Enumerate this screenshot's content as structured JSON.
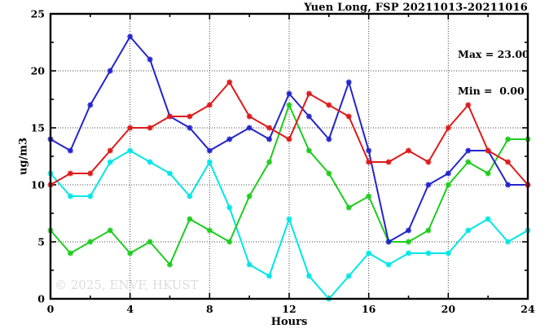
{
  "chart": {
    "title": "Yuen Long, FSP 20211013-20211016",
    "annotation": {
      "max_label": "Max = 23.00",
      "min_label": "Min =  0.00"
    },
    "watermark": "© 2025, ENVF, HKUST",
    "xlabel": "Hours",
    "ylabel": "ug/m3"
  },
  "chart_data": {
    "type": "line",
    "title": "Yuen Long, FSP 20211013-20211016",
    "xlabel": "Hours",
    "ylabel": "ug/m3",
    "xlim": [
      0,
      24
    ],
    "ylim": [
      0,
      25
    ],
    "x_major_ticks": [
      0,
      4,
      8,
      12,
      16,
      20,
      24
    ],
    "x_minor_step": 2,
    "y_major_ticks": [
      0,
      5,
      10,
      15,
      20,
      25
    ],
    "y_minor_step": 2.5,
    "grid": "dotted lines at major ticks, box border with inward ticks on all four sides",
    "legend_position": "none",
    "marker": "star",
    "max_value": 23.0,
    "min_value": 0.0,
    "x": [
      0,
      1,
      2,
      3,
      4,
      5,
      6,
      7,
      8,
      9,
      10,
      11,
      12,
      13,
      14,
      15,
      16,
      17,
      18,
      19,
      20,
      21,
      22,
      23,
      24
    ],
    "series": [
      {
        "name": "cyan",
        "color": "#00e6e6",
        "values": [
          11,
          9,
          9,
          12,
          13,
          12,
          11,
          9,
          12,
          8,
          3,
          2,
          7,
          2,
          0,
          2,
          4,
          3,
          4,
          4,
          4,
          6,
          7,
          5,
          6
        ]
      },
      {
        "name": "green",
        "color": "#1ecc1e",
        "values": [
          6,
          4,
          5,
          6,
          4,
          5,
          3,
          7,
          6,
          5,
          9,
          12,
          17,
          13,
          11,
          8,
          9,
          5,
          5,
          6,
          10,
          12,
          11,
          14,
          14
        ]
      },
      {
        "name": "blue",
        "color": "#2424cc",
        "values": [
          14,
          13,
          17,
          20,
          23,
          21,
          16,
          15,
          13,
          14,
          15,
          14,
          18,
          16,
          14,
          19,
          13,
          5,
          6,
          10,
          11,
          13,
          13,
          10,
          10
        ]
      },
      {
        "name": "red",
        "color": "#dd1a1a",
        "values": [
          10,
          11,
          11,
          13,
          15,
          15,
          16,
          16,
          17,
          19,
          16,
          15,
          14,
          18,
          17,
          16,
          12,
          12,
          13,
          12,
          15,
          17,
          13,
          12,
          10
        ]
      }
    ]
  }
}
